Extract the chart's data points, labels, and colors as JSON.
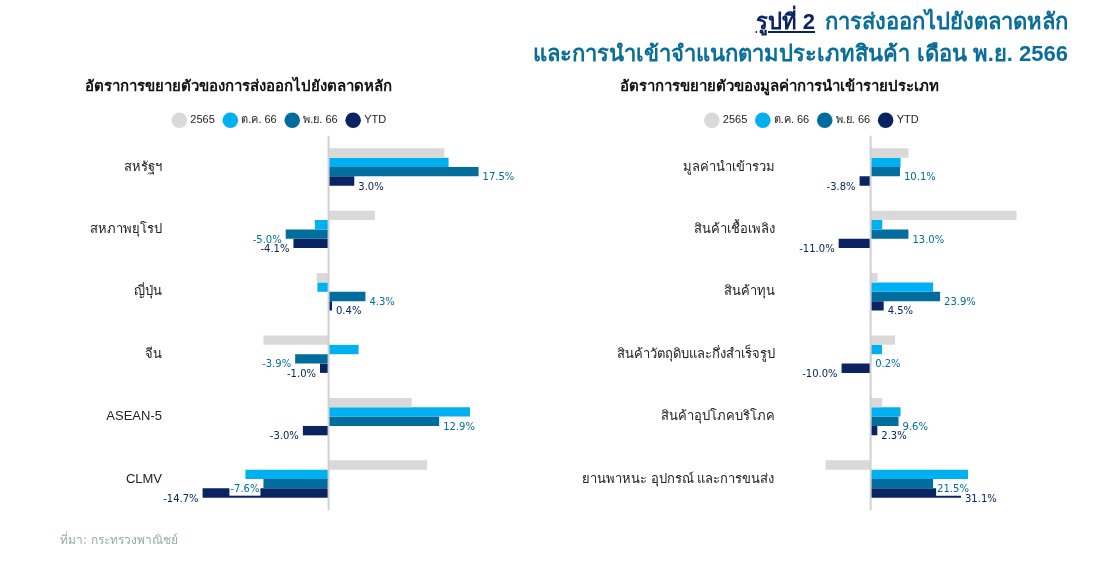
{
  "chart_data": [
    {
      "type": "bar",
      "orientation": "horizontal",
      "title": "อัตราการขยายตัวของการส่งออกไปยังตลาดหลัก",
      "annotations": [
        "รูปที่ 2",
        "การส่งออกไปยังตลาดหลัก",
        "และการนำเข้าจำแนกตามประเภทสินค้า เดือน พ.ย. 2566",
        "ที่มา: กระทรวงพาณิชย์"
      ],
      "categories": [
        "สหรัฐฯ",
        "สหภาพยุโรป",
        "ญี่ปุ่น",
        "จีน",
        "ASEAN-5",
        "CLMV"
      ],
      "tick_labels": "y",
      "grid": false,
      "legend": "top",
      "series": [
        {
          "name": "2565",
          "color": "#d9d9d9",
          "values": [
            13.5,
            5.4,
            -1.4,
            -7.6,
            9.7,
            11.5
          ]
        },
        {
          "name": "ต.ค. 66",
          "color": "#00b0f0",
          "values": [
            14.0,
            -1.6,
            -1.3,
            3.5,
            16.5,
            -9.7
          ]
        },
        {
          "name": "พ.ย. 66",
          "color": "#006d9c",
          "values": [
            17.5,
            -5.0,
            4.3,
            -3.9,
            12.9,
            -7.6
          ],
          "value_labels": [
            "17.5%",
            "-5.0%",
            "4.3%",
            "-3.9%",
            "12.9%",
            "-7.6%"
          ]
        },
        {
          "name": "YTD",
          "color": "#0a2463",
          "values": [
            3.0,
            -4.1,
            0.4,
            -1.0,
            -3.0,
            -14.7
          ],
          "value_labels": [
            "3.0%",
            "-4.1%",
            "0.4%",
            "-1.0%",
            "-3.0%",
            "-14.7%"
          ]
        }
      ]
    },
    {
      "type": "bar",
      "orientation": "horizontal",
      "title": "อัตราการขยายตัวของมูลค่าการนำเข้ารายประเภท",
      "categories": [
        "มูลค่านำเข้ารวม",
        "สินค้าเชื้อเพลิง",
        "สินค้าทุน",
        "สินค้าวัตถุดิบและกึ่งสำเร็จรูป",
        "สินค้าอุปโภคบริโภค",
        "ยานพาหนะ อุปกรณ์ และการขนส่ง"
      ],
      "tick_labels": "y",
      "grid": false,
      "legend": "top",
      "series": [
        {
          "name": "2565",
          "color": "#d9d9d9",
          "values": [
            13.0,
            50.2,
            2.4,
            8.4,
            4.0,
            -15.5
          ]
        },
        {
          "name": "ต.ค. 66",
          "color": "#00b0f0",
          "values": [
            10.3,
            4.0,
            21.5,
            3.9,
            10.3,
            33.5
          ]
        },
        {
          "name": "พ.ย. 66",
          "color": "#006d9c",
          "values": [
            10.1,
            13.0,
            23.9,
            0.2,
            9.6,
            21.5
          ],
          "value_labels": [
            "10.1%",
            "13.0%",
            "23.9%",
            "0.2%",
            "9.6%",
            "21.5%"
          ]
        },
        {
          "name": "YTD",
          "color": "#0a2463",
          "values": [
            -3.8,
            -11.0,
            4.5,
            -10.0,
            2.3,
            31.1
          ],
          "value_labels": [
            "-3.8%",
            "-11.0%",
            "4.5%",
            "-10.0%",
            "2.3%",
            "31.1%"
          ]
        }
      ]
    }
  ]
}
